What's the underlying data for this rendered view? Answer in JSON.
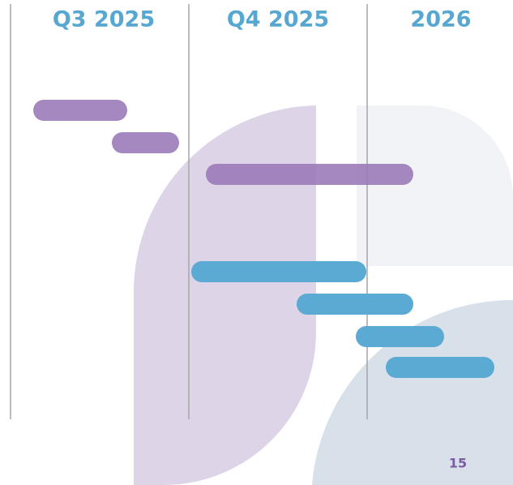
{
  "header": {
    "columns": [
      "Q3 2025",
      "Q4 2025",
      "2026"
    ]
  },
  "footer": {
    "page_number": "15"
  }
}
